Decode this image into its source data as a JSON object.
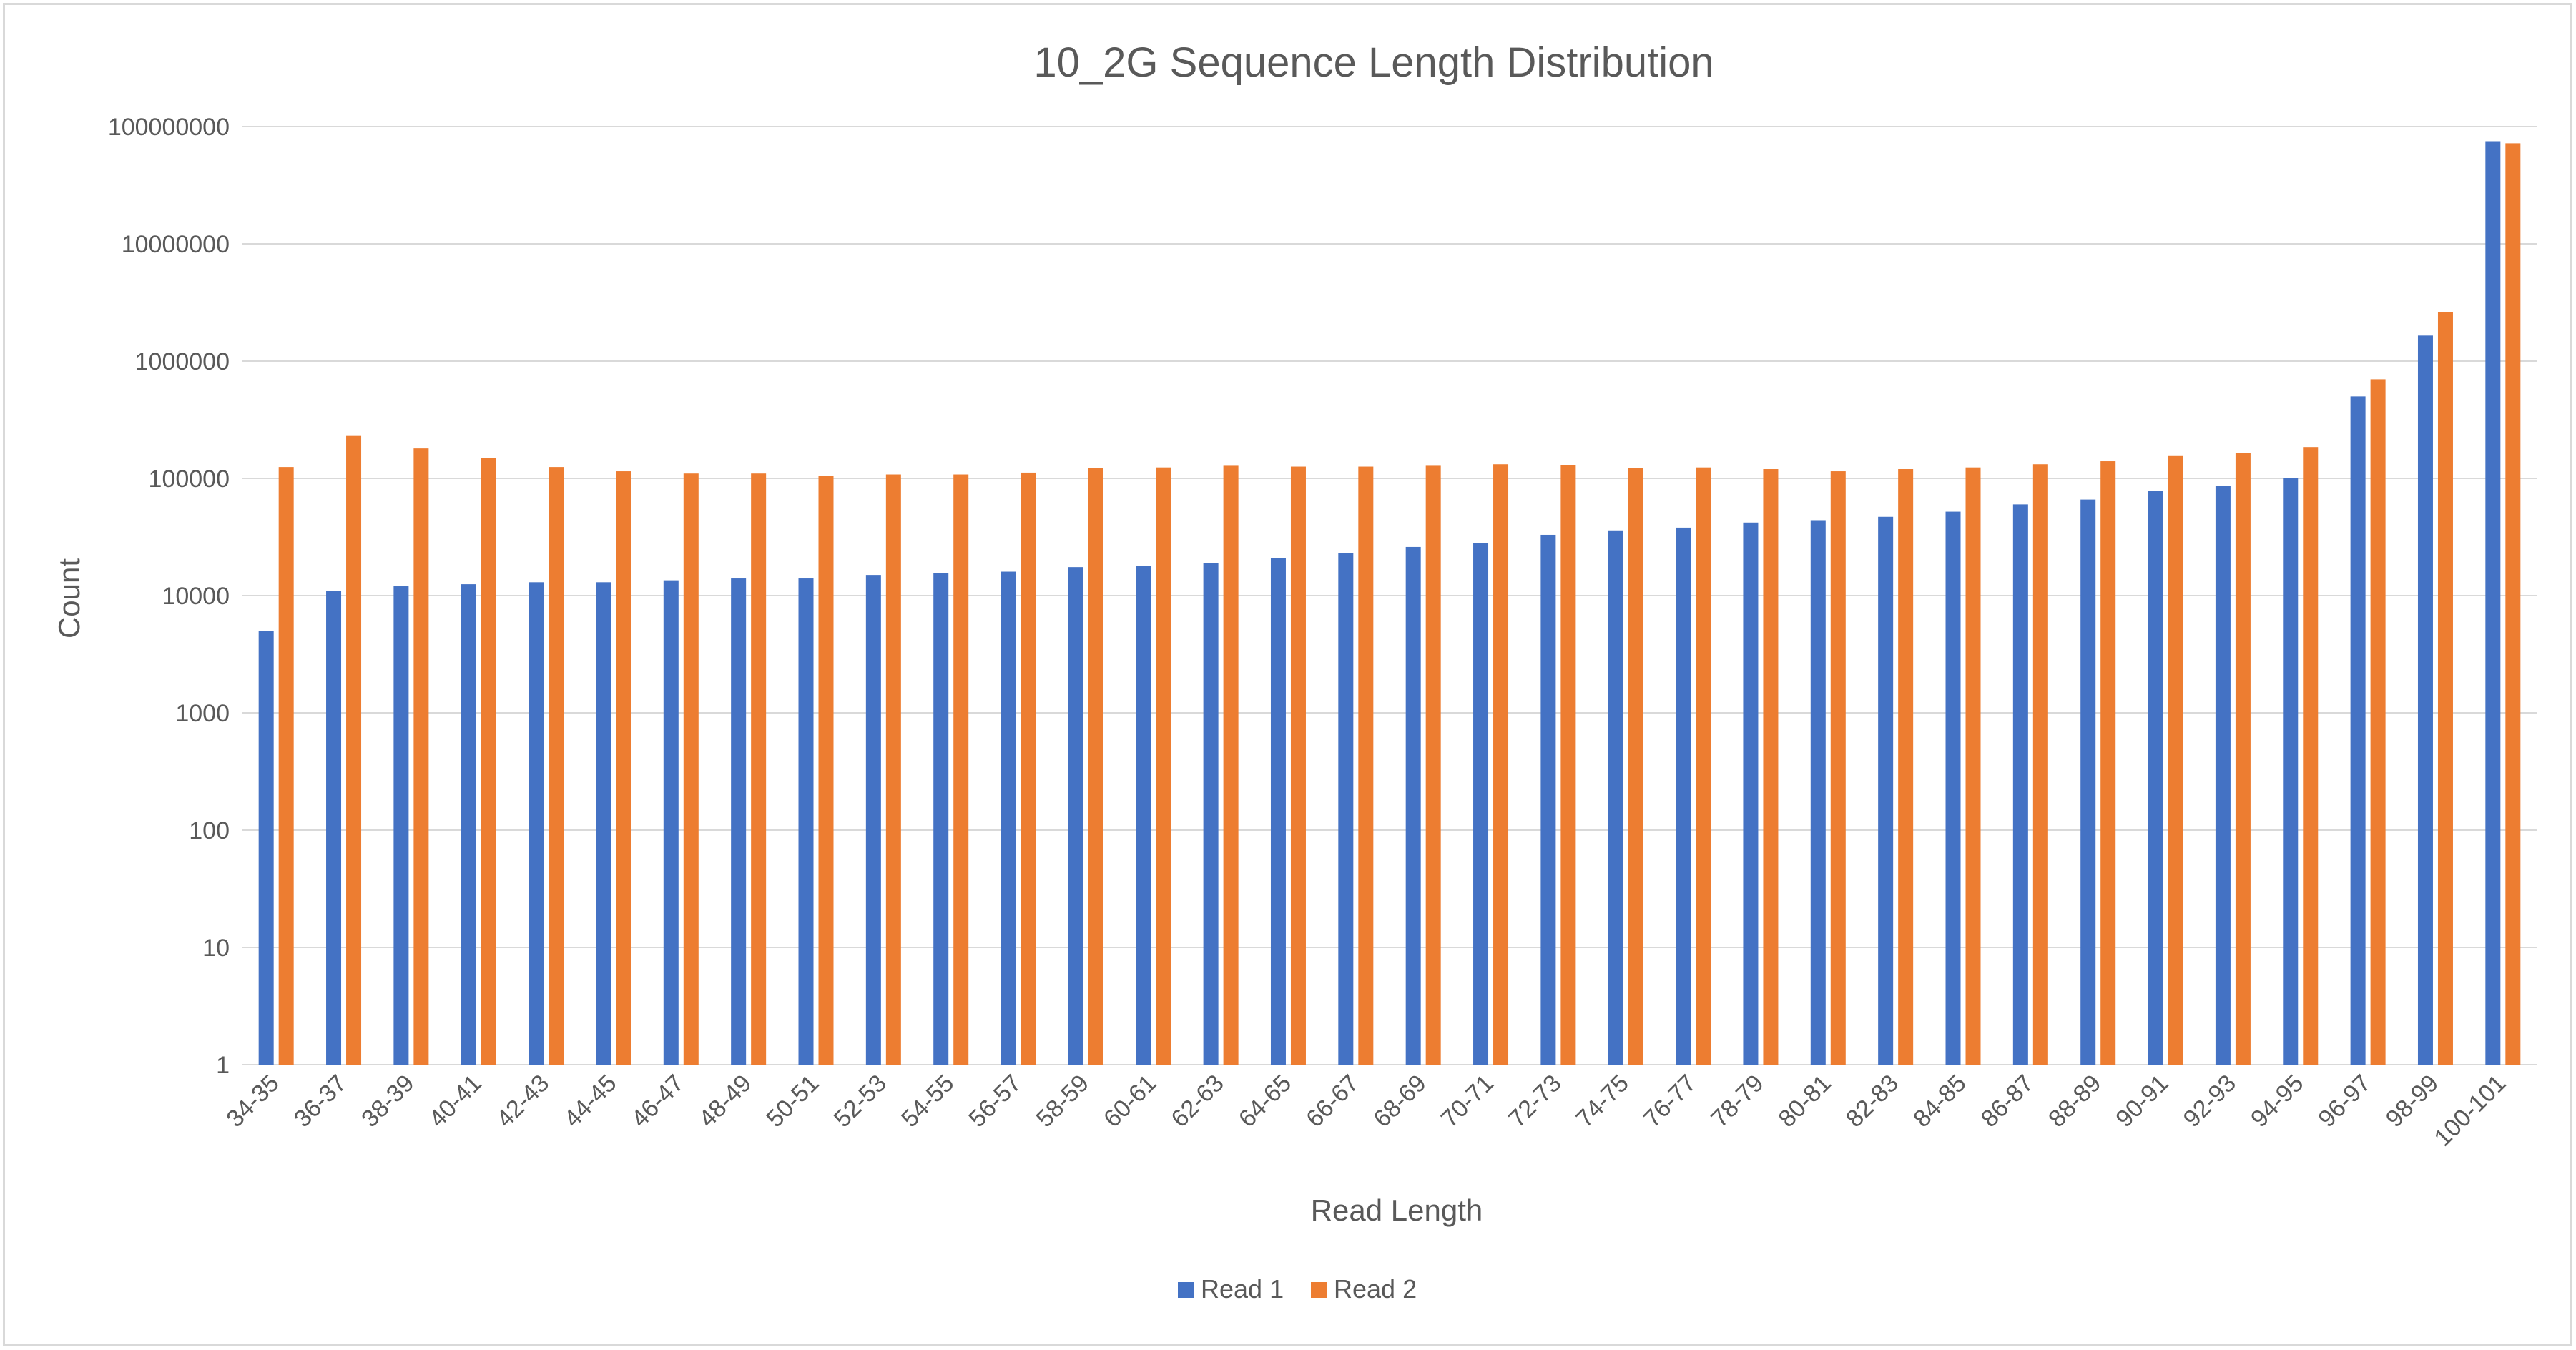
{
  "chart_data": {
    "type": "bar",
    "title": "10_2G Sequence Length Distribution",
    "xlabel": "Read Length",
    "ylabel": "Count",
    "yscale": "log",
    "ylim": [
      1,
      100000000
    ],
    "yticks": [
      "1",
      "10",
      "100",
      "1000",
      "10000",
      "100000",
      "1000000",
      "10000000",
      "100000000"
    ],
    "grid": true,
    "legend": "bottom",
    "categories": [
      "34-35",
      "36-37",
      "38-39",
      "40-41",
      "42-43",
      "44-45",
      "46-47",
      "48-49",
      "50-51",
      "52-53",
      "54-55",
      "56-57",
      "58-59",
      "60-61",
      "62-63",
      "64-65",
      "66-67",
      "68-69",
      "70-71",
      "72-73",
      "74-75",
      "76-77",
      "78-79",
      "80-81",
      "82-83",
      "84-85",
      "86-87",
      "88-89",
      "90-91",
      "92-93",
      "94-95",
      "96-97",
      "98-99",
      "100-101"
    ],
    "series": [
      {
        "name": "Read 1",
        "color": "#4472c4",
        "values": [
          5000,
          11000,
          12000,
          12500,
          13000,
          13000,
          13500,
          14000,
          14000,
          15000,
          15500,
          16000,
          17500,
          18000,
          19000,
          21000,
          23000,
          26000,
          28000,
          33000,
          36000,
          38000,
          42000,
          44000,
          47000,
          52000,
          60000,
          66000,
          78000,
          86000,
          100000,
          500000,
          1650000,
          75000000
        ]
      },
      {
        "name": "Read 2",
        "color": "#ed7d31",
        "values": [
          125000,
          230000,
          180000,
          150000,
          125000,
          115000,
          110000,
          110000,
          105000,
          108000,
          108000,
          112000,
          122000,
          124000,
          128000,
          126000,
          126000,
          128000,
          132000,
          130000,
          122000,
          124000,
          120000,
          115000,
          120000,
          124000,
          132000,
          140000,
          155000,
          165000,
          185000,
          700000,
          2600000,
          72000000
        ]
      }
    ]
  }
}
